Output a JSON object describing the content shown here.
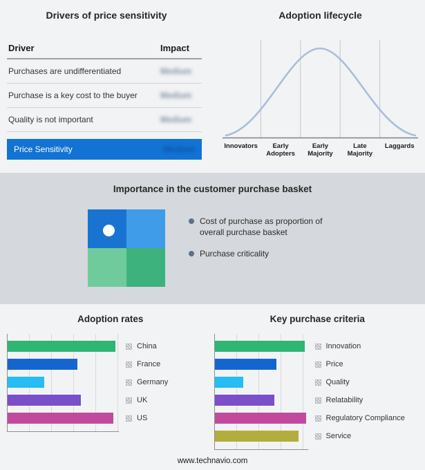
{
  "page": {
    "footer_url": "www.technavio.com",
    "background": "#f2f3f5",
    "band_background": "#d5d8dc",
    "accent_blue": "#1273d4"
  },
  "drivers": {
    "title": "Drivers of price sensitivity",
    "headers": {
      "driver": "Driver",
      "impact": "Impact"
    },
    "rows": [
      {
        "driver": "Purchases are undifferentiated",
        "impact": "Medium"
      },
      {
        "driver": "Purchase is a key cost to the buyer",
        "impact": "Medium"
      },
      {
        "driver": "Quality is not important",
        "impact": "Medium"
      }
    ],
    "highlight": {
      "driver": "Price Sensitivity",
      "impact": "Medium",
      "background": "#1273d4"
    }
  },
  "basket": {
    "title": "Importance in the customer purchase basket",
    "bullets": [
      "Cost of purchase as proportion of overall purchase basket",
      "Purchase criticality"
    ],
    "quadrant_colors": {
      "top_left": "#1973d0",
      "top_right": "#3f9ce8",
      "bottom_left": "#6fcb9b",
      "bottom_right": "#3eb27c"
    },
    "dot_color": "#ffffff"
  },
  "chart_data": [
    {
      "id": "adoption-lifecycle",
      "type": "line",
      "shape": "bell-curve",
      "title": "Adoption lifecycle",
      "x_labels": [
        "Innovators",
        "Early Adopters",
        "Early Majority",
        "Late Majority",
        "Laggards"
      ],
      "line_color": "#a9bedb",
      "grid": true,
      "notes": "normal-distribution adoption curve peaking over Early Majority"
    },
    {
      "id": "adoption-rates",
      "type": "bar",
      "orientation": "horizontal",
      "title": "Adoption rates",
      "categories": [
        "China",
        "France",
        "Germany",
        "UK",
        "US"
      ],
      "values": [
        97,
        63,
        33,
        66,
        95
      ],
      "xlim": [
        0,
        100
      ],
      "colors": [
        "#2fb574",
        "#1565d0",
        "#25bdf3",
        "#7a4fc9",
        "#c14a9e"
      ],
      "grid": true,
      "legend_position": "right"
    },
    {
      "id": "key-purchase-criteria",
      "type": "bar",
      "orientation": "horizontal",
      "title": "Key purchase criteria",
      "categories": [
        "Innovation",
        "Price",
        "Quality",
        "Relatability",
        "Regulatory Compliance",
        "Service"
      ],
      "values": [
        97,
        66,
        31,
        64,
        98,
        90
      ],
      "xlim": [
        0,
        100
      ],
      "colors": [
        "#2fb574",
        "#1565d0",
        "#25bdf3",
        "#7a4fc9",
        "#c14a9e",
        "#b3ad3d"
      ],
      "grid": true,
      "legend_position": "right"
    }
  ]
}
